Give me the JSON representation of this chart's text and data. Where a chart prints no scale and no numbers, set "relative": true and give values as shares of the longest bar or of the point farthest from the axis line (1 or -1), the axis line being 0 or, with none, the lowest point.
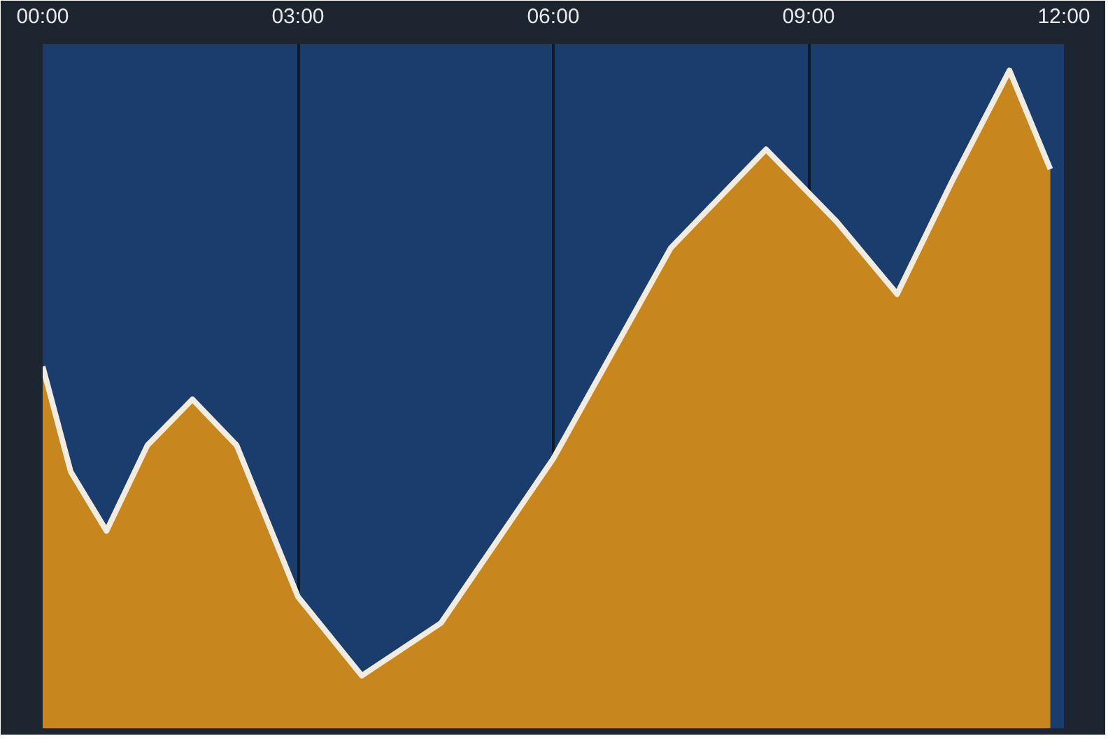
{
  "chart_data": {
    "type": "area",
    "relative": true,
    "xlim": [
      0,
      12
    ],
    "xticks": [
      {
        "value": 0,
        "label": "00:00"
      },
      {
        "value": 3,
        "label": "03:00"
      },
      {
        "value": 6,
        "label": "06:00"
      },
      {
        "value": 9,
        "label": "09:00"
      },
      {
        "value": 12,
        "label": "12:00"
      }
    ],
    "grid": "x",
    "tick_labels": "x",
    "x": [
      0,
      0.33,
      0.75,
      1.23,
      1.76,
      2.28,
      3.0,
      3.75,
      4.68,
      6.0,
      7.38,
      8.5,
      9.33,
      10.04,
      10.68,
      11.36,
      11.84
    ],
    "series": [
      {
        "color": "#c8861e",
        "values": [
          0.55,
          0.39,
          0.3,
          0.43,
          0.5,
          0.43,
          0.2,
          0.08,
          0.16,
          0.41,
          0.73,
          0.88,
          0.77,
          0.66,
          0.83,
          1.0,
          0.85
        ]
      }
    ]
  }
}
